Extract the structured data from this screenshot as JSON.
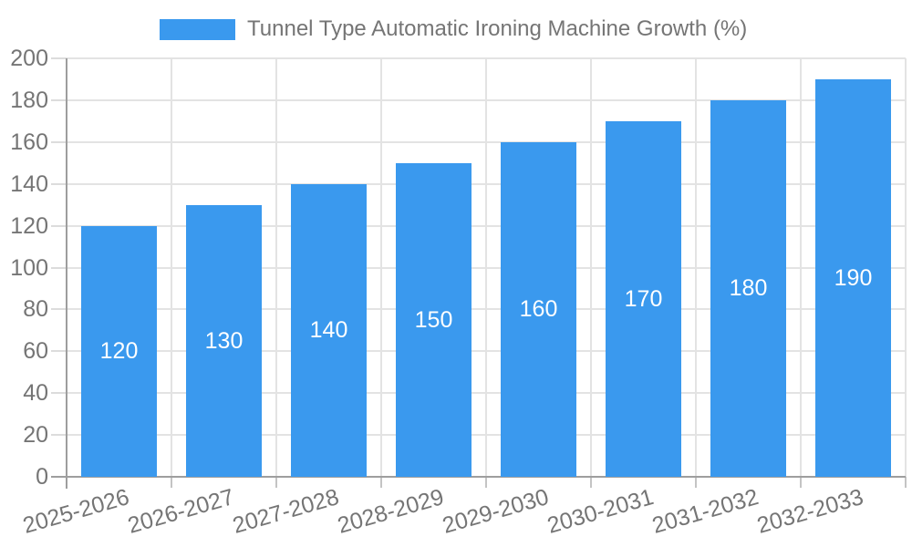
{
  "chart_data": {
    "type": "bar",
    "title": "Tunnel Type Automatic Ironing Machine Growth (%)",
    "categories": [
      "2025-2026",
      "2026-2027",
      "2027-2028",
      "2028-2029",
      "2029-2030",
      "2030-2031",
      "2031-2032",
      "2032-2033"
    ],
    "values": [
      120,
      130,
      140,
      150,
      160,
      170,
      180,
      190
    ],
    "xlabel": "",
    "ylabel": "",
    "ylim": [
      0,
      200
    ],
    "ytick_step": 20,
    "grid": true,
    "legend_position": "top",
    "bar_color": "#3a99ee",
    "bar_label_color": "#ffffff",
    "text_color": "#757575",
    "grid_color": "#e3e3e3",
    "axis_color": "#9e9e9e"
  }
}
